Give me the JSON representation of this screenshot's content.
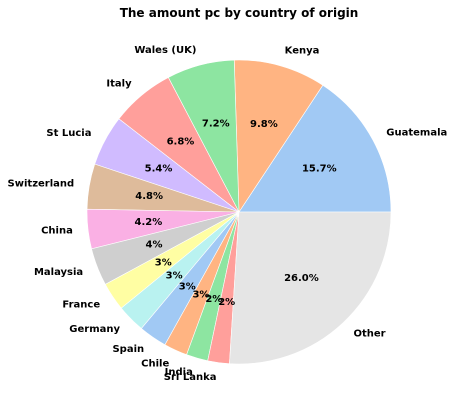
{
  "chart_data": {
    "type": "pie",
    "title": "The amount pc by country of origin",
    "start_angle_deg": 0,
    "direction": "counterclockwise",
    "legend": "none",
    "slices": [
      {
        "label": "Guatemala",
        "value": 15.7,
        "pct_label": "15.7%",
        "color": "#a1c9f4"
      },
      {
        "label": "Kenya",
        "value": 9.8,
        "pct_label": "9.8%",
        "color": "#ffb482"
      },
      {
        "label": "Wales (UK)",
        "value": 7.2,
        "pct_label": "7.2%",
        "color": "#8de5a1"
      },
      {
        "label": "Italy",
        "value": 6.8,
        "pct_label": "6.8%",
        "color": "#ff9f9b"
      },
      {
        "label": "St Lucia",
        "value": 5.4,
        "pct_label": "5.4%",
        "color": "#d0bbff"
      },
      {
        "label": "Switzerland",
        "value": 4.8,
        "pct_label": "4.8%",
        "color": "#debb9b"
      },
      {
        "label": "China",
        "value": 4.2,
        "pct_label": "4.2%",
        "color": "#fab0e4"
      },
      {
        "label": "Malaysia",
        "value": 4.0,
        "pct_label": "4%",
        "color": "#cfcfcf"
      },
      {
        "label": "France",
        "value": 3.0,
        "pct_label": "3%",
        "color": "#fffea3"
      },
      {
        "label": "Germany",
        "value": 3.0,
        "pct_label": "3%",
        "color": "#b9f2f0"
      },
      {
        "label": "Spain",
        "value": 3.0,
        "pct_label": "3%",
        "color": "#a1c9f4"
      },
      {
        "label": "Chile",
        "value": 2.5,
        "pct_label": "3%",
        "color": "#ffb482"
      },
      {
        "label": "India",
        "value": 2.3,
        "pct_label": "2%",
        "color": "#8de5a1"
      },
      {
        "label": "Sri Lanka",
        "value": 2.3,
        "pct_label": "2%",
        "color": "#ff9f9b"
      },
      {
        "label": "Other",
        "value": 26.0,
        "pct_label": "26.0%",
        "color": "#e5e5e5"
      }
    ]
  }
}
